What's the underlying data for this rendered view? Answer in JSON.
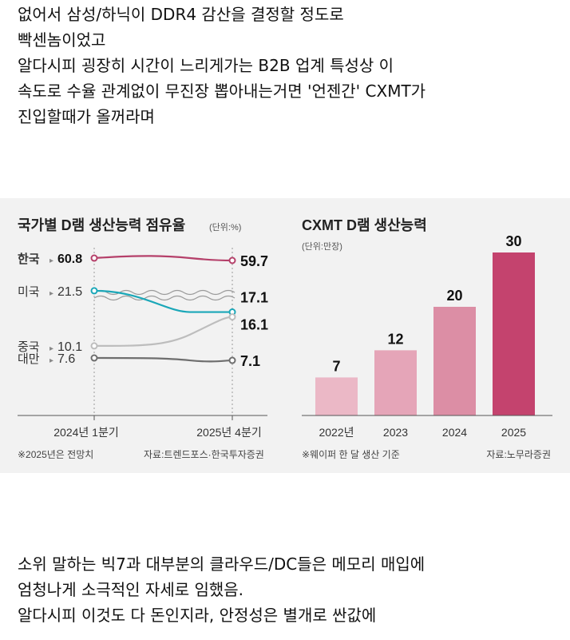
{
  "post": {
    "top_lines": [
      "없어서 삼성/하닉이 DDR4 감산을 결정할 정도로",
      "빡센놈이었고",
      "알다시피 굉장히 시간이 느리게가는 B2B 업계 특성상 이",
      "속도로 수율 관계없이 무진장 뽑아내는거면 '언젠간' CXMT가",
      "진입할때가 올꺼라며"
    ],
    "bottom_lines": [
      "소위 말하는 빅7과 대부분의 클라우드/DC들은 메모리 매입에",
      "엄청나게 소극적인 자세로 임했음.",
      "알다시피 이것도 다 돈인지라, 안정성은 별개로 싼값에"
    ]
  },
  "chart_data": [
    {
      "type": "line",
      "title": "국가별 D램 생산능력 점유율",
      "unit_note": "(단위:%)",
      "x": [
        "2024년 1분기",
        "2025년 4분기"
      ],
      "series": [
        {
          "name": "한국",
          "values": [
            60.8,
            59.7
          ],
          "color": "#b5406a",
          "start_label": "60.8",
          "end_label": "59.7"
        },
        {
          "name": "미국",
          "values": [
            21.5,
            17.1
          ],
          "color": "#1aa7b8",
          "start_label": "21.5",
          "end_label": "17.1"
        },
        {
          "name": "중국",
          "values": [
            10.1,
            16.1
          ],
          "color": "#bdbdbd",
          "start_label": "10.1",
          "end_label": "16.1"
        },
        {
          "name": "대만",
          "values": [
            7.6,
            7.1
          ],
          "color": "#6e6e6e",
          "start_label": "7.6",
          "end_label": "7.1"
        }
      ],
      "axis_break": true,
      "footnote": "※2025년은 전망치",
      "source": "자료:트렌드포스·한국투자증권"
    },
    {
      "type": "bar",
      "title": "CXMT D램 생산능력",
      "unit_note": "(단위:만장)",
      "categories": [
        "2022년",
        "2023",
        "2024",
        "2025"
      ],
      "values": [
        7,
        12,
        20,
        30
      ],
      "colors": [
        "#ebb8c6",
        "#e5a5b8",
        "#dc8ea5",
        "#c4436e"
      ],
      "footnote": "※웨이퍼 한 달 생산 기준",
      "source": "자료:노무라증권"
    }
  ]
}
